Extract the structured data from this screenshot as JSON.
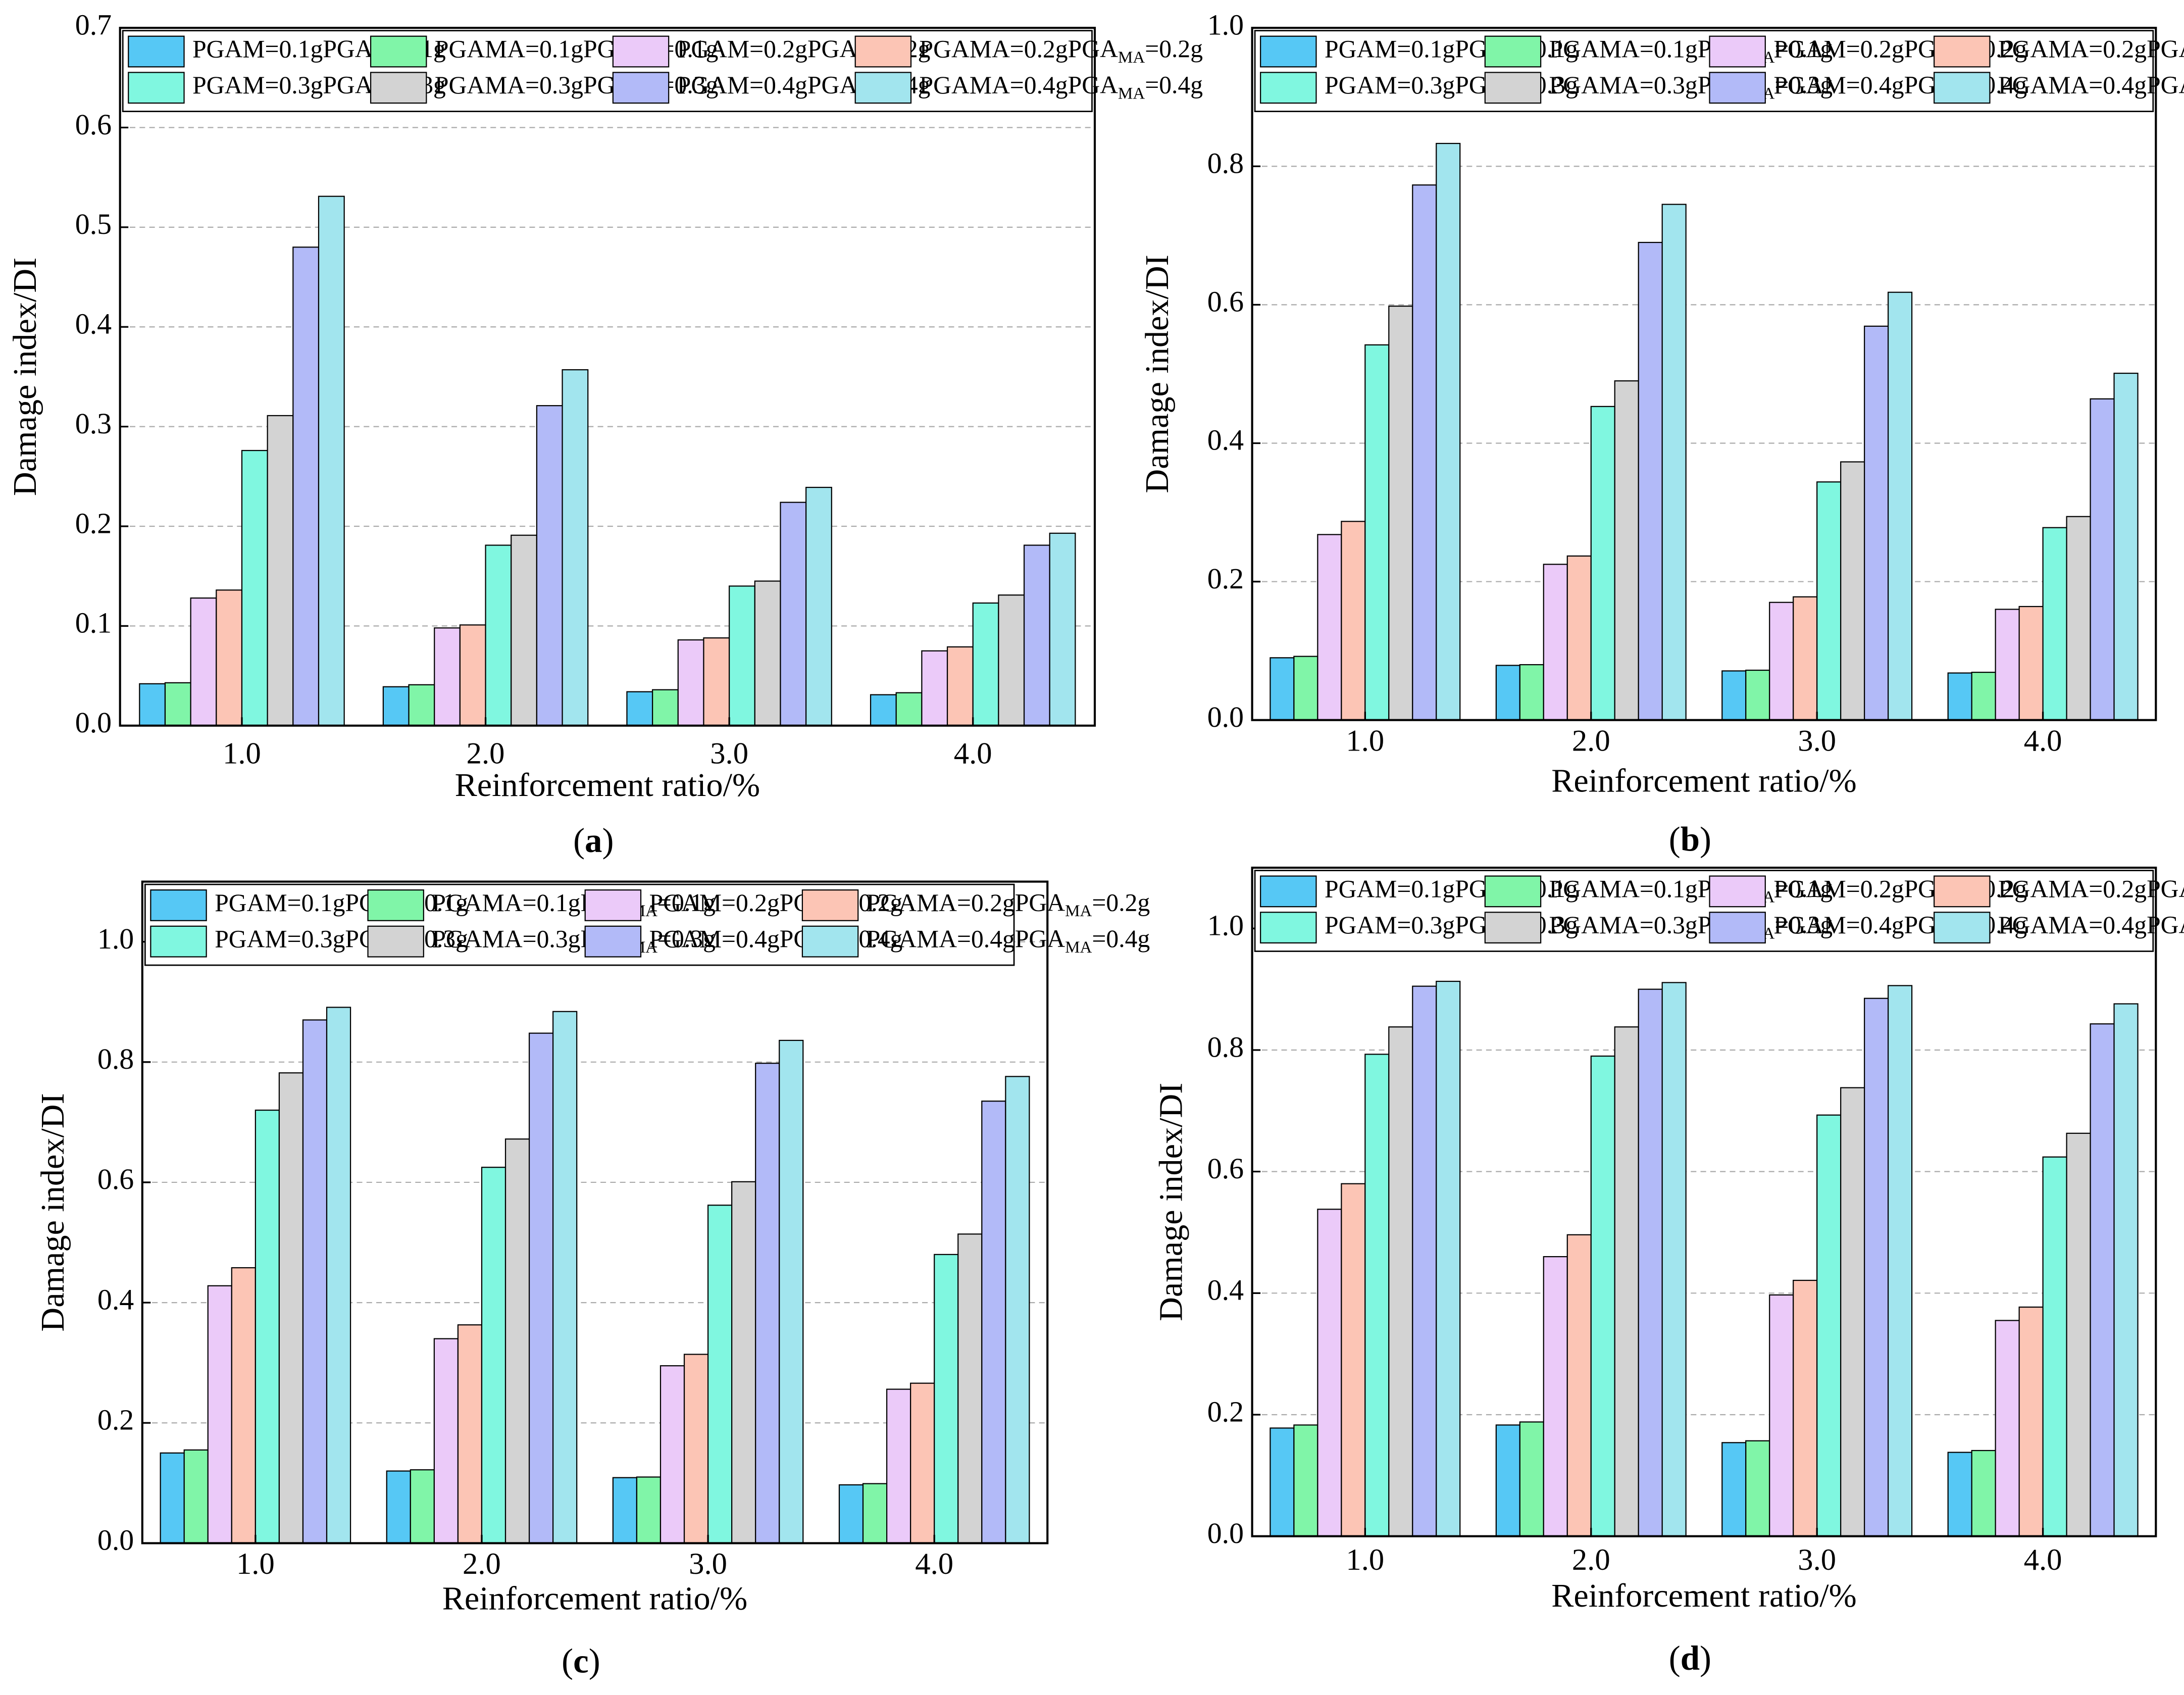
{
  "chart_data": [
    {
      "type": "bar",
      "panel_label": "(a)",
      "x_label": "Reinforcement ratio/%",
      "y_label": "Damage index/DI",
      "categories": [
        "1.0",
        "2.0",
        "3.0",
        "4.0"
      ],
      "ylim": [
        0,
        0.7
      ],
      "yticks": [
        {
          "value": 0,
          "label": "0.0"
        },
        0.1,
        0.2,
        0.3,
        0.4,
        0.5,
        0.6,
        0.7
      ],
      "grid": true,
      "legend": "top",
      "series": [
        {
          "name": "PGAM=0.1g",
          "color": "#56c8f5",
          "values": [
            0.042,
            0.039,
            0.034,
            0.031
          ]
        },
        {
          "name": "PGAMA=0.1g",
          "color": "#80f5a8",
          "values": [
            0.043,
            0.041,
            0.036,
            0.033
          ]
        },
        {
          "name": "PGAM=0.2g",
          "color": "#ebcaf9",
          "values": [
            0.128,
            0.098,
            0.086,
            0.075
          ]
        },
        {
          "name": "PGAMA=0.2g",
          "color": "#fcc5b5",
          "values": [
            0.136,
            0.101,
            0.088,
            0.079
          ]
        },
        {
          "name": "PGAM=0.3g",
          "color": "#80f7e0",
          "values": [
            0.276,
            0.181,
            0.14,
            0.123
          ]
        },
        {
          "name": "PGAMA=0.3g",
          "color": "#d3d3d3",
          "values": [
            0.311,
            0.191,
            0.145,
            0.131
          ]
        },
        {
          "name": "PGAM=0.4g",
          "color": "#b2baf8",
          "values": [
            0.48,
            0.321,
            0.224,
            0.181
          ]
        },
        {
          "name": "PGAMA=0.4g",
          "color": "#a2e5ee",
          "values": [
            0.531,
            0.357,
            0.239,
            0.193
          ]
        }
      ]
    },
    {
      "type": "bar",
      "panel_label": "(b)",
      "x_label": "Reinforcement ratio/%",
      "y_label": "Damage index/DI",
      "categories": [
        "1.0",
        "2.0",
        "3.0",
        "4.0"
      ],
      "ylim": [
        0,
        1.0
      ],
      "yticks": [
        {
          "value": 0,
          "label": "0.0"
        },
        0.2,
        0.4,
        0.6,
        0.8,
        {
          "value": 1,
          "label": "1.0"
        }
      ],
      "grid": true,
      "legend": "top",
      "series": [
        {
          "name": "PGAM=0.1g",
          "color": "#56c8f5",
          "values": [
            0.09,
            0.079,
            0.071,
            0.068
          ]
        },
        {
          "name": "PGAMA=0.1g",
          "color": "#80f5a8",
          "values": [
            0.092,
            0.08,
            0.072,
            0.069
          ]
        },
        {
          "name": "PGAM=0.2g",
          "color": "#ebcaf9",
          "values": [
            0.268,
            0.225,
            0.17,
            0.16
          ]
        },
        {
          "name": "PGAMA=0.2g",
          "color": "#fcc5b5",
          "values": [
            0.287,
            0.237,
            0.178,
            0.164
          ]
        },
        {
          "name": "PGAM=0.3g",
          "color": "#80f7e0",
          "values": [
            0.542,
            0.453,
            0.344,
            0.278
          ]
        },
        {
          "name": "PGAMA=0.3g",
          "color": "#d3d3d3",
          "values": [
            0.598,
            0.49,
            0.373,
            0.294
          ]
        },
        {
          "name": "PGAM=0.4g",
          "color": "#b2baf8",
          "values": [
            0.773,
            0.69,
            0.569,
            0.464
          ]
        },
        {
          "name": "PGAMA=0.4g",
          "color": "#a2e5ee",
          "values": [
            0.833,
            0.745,
            0.618,
            0.501
          ]
        }
      ]
    },
    {
      "type": "bar",
      "panel_label": "(c)",
      "x_label": "Reinforcement ratio/%",
      "y_label": "Damage index/DI",
      "categories": [
        "1.0",
        "2.0",
        "3.0",
        "4.0"
      ],
      "ylim": [
        0,
        1.1
      ],
      "yticks": [
        {
          "value": 0,
          "label": "0.0"
        },
        0.2,
        0.4,
        0.6,
        0.8,
        {
          "value": 1,
          "label": "1.0"
        }
      ],
      "grid": true,
      "legend": "top",
      "series": [
        {
          "name": "PGAM=0.1g",
          "color": "#56c8f5",
          "values": [
            0.15,
            0.12,
            0.109,
            0.097
          ]
        },
        {
          "name": "PGAMA=0.1g",
          "color": "#80f5a8",
          "values": [
            0.155,
            0.122,
            0.11,
            0.099
          ]
        },
        {
          "name": "PGAM=0.2g",
          "color": "#ebcaf9",
          "values": [
            0.428,
            0.34,
            0.295,
            0.256
          ]
        },
        {
          "name": "PGAMA=0.2g",
          "color": "#fcc5b5",
          "values": [
            0.458,
            0.363,
            0.314,
            0.266
          ]
        },
        {
          "name": "PGAM=0.3g",
          "color": "#80f7e0",
          "values": [
            0.72,
            0.625,
            0.562,
            0.48
          ]
        },
        {
          "name": "PGAMA=0.3g",
          "color": "#d3d3d3",
          "values": [
            0.782,
            0.672,
            0.601,
            0.514
          ]
        },
        {
          "name": "PGAM=0.4g",
          "color": "#b2baf8",
          "values": [
            0.87,
            0.848,
            0.798,
            0.735
          ]
        },
        {
          "name": "PGAMA=0.4g",
          "color": "#a2e5ee",
          "values": [
            0.891,
            0.884,
            0.836,
            0.776
          ]
        }
      ]
    },
    {
      "type": "bar",
      "panel_label": "(d)",
      "x_label": "Reinforcement ratio/%",
      "y_label": "Damage index/DI",
      "categories": [
        "1.0",
        "2.0",
        "3.0",
        "4.0"
      ],
      "ylim": [
        0,
        1.1
      ],
      "yticks": [
        {
          "value": 0,
          "label": "0.0"
        },
        0.2,
        0.4,
        0.6,
        0.8,
        {
          "value": 1,
          "label": "1.0"
        }
      ],
      "grid": true,
      "legend": "top",
      "series": [
        {
          "name": "PGAM=0.1g",
          "color": "#56c8f5",
          "values": [
            0.178,
            0.183,
            0.154,
            0.138
          ]
        },
        {
          "name": "PGAMA=0.1g",
          "color": "#80f5a8",
          "values": [
            0.183,
            0.188,
            0.157,
            0.141
          ]
        },
        {
          "name": "PGAM=0.2g",
          "color": "#ebcaf9",
          "values": [
            0.538,
            0.46,
            0.397,
            0.355
          ]
        },
        {
          "name": "PGAMA=0.2g",
          "color": "#fcc5b5",
          "values": [
            0.58,
            0.496,
            0.421,
            0.377
          ]
        },
        {
          "name": "PGAM=0.3g",
          "color": "#80f7e0",
          "values": [
            0.793,
            0.79,
            0.693,
            0.624
          ]
        },
        {
          "name": "PGAMA=0.3g",
          "color": "#d3d3d3",
          "values": [
            0.838,
            0.838,
            0.738,
            0.663
          ]
        },
        {
          "name": "PGAM=0.4g",
          "color": "#b2baf8",
          "values": [
            0.905,
            0.9,
            0.885,
            0.843
          ]
        },
        {
          "name": "PGAMA=0.4g",
          "color": "#a2e5ee",
          "values": [
            0.913,
            0.911,
            0.906,
            0.876
          ]
        }
      ]
    }
  ]
}
